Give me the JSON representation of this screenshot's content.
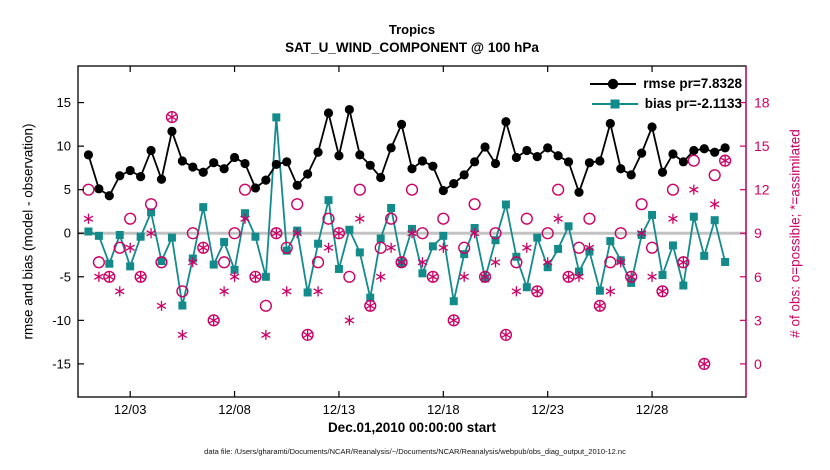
{
  "title": {
    "line1": "Tropics",
    "line2": "SAT_U_WIND_COMPONENT @ 100 hPa"
  },
  "axis_labels": {
    "left": "rmse and bias (model - observation)",
    "right": "# of obs: o=possible; *=assimilated",
    "x": "Dec.01,2010 00:00:00 start"
  },
  "legend": {
    "rmse_label": "rmse pr=7.8328",
    "bias_label": "bias pr=-2.1133"
  },
  "caption": "data file: /Users/gharamti/Documents/NCAR/Reanalysis/~/Documents/NCAR/Reanalysis/webpub/obs_diag_output_2010-12.nc",
  "colors": {
    "rmse": "#000000",
    "bias": "#148b8b",
    "obs": "#cc0066",
    "zero_line": "#c3c3c3"
  },
  "chart_data": {
    "type": "line",
    "title": "Tropics — SAT_U_WIND_COMPONENT @ 100 hPa",
    "xlabel": "Dec.01,2010 00:00:00 start",
    "ylabel_left": "rmse and bias (model - observation)",
    "ylabel_right": "# of obs: o=possible; *=assimilated",
    "xlim": [
      0.5,
      32.5
    ],
    "ylim_left": [
      -18.8,
      19.2
    ],
    "ylim_right": [
      0,
      18
    ],
    "right_axis_mapping": "count maps linearly: 0..18 onto left -15..15",
    "x_ticks": [
      3,
      8,
      13,
      18,
      23,
      28
    ],
    "x_tick_labels": [
      "12/03",
      "12/08",
      "12/13",
      "12/18",
      "12/23",
      "12/28"
    ],
    "left_ticks": [
      -15,
      -10,
      -5,
      0,
      5,
      10,
      15
    ],
    "right_ticks": [
      0,
      3,
      6,
      9,
      12,
      15,
      18
    ],
    "x_days": [
      1.0,
      1.5,
      2.0,
      2.5,
      3.0,
      3.5,
      4.0,
      4.5,
      5.0,
      5.5,
      6.0,
      6.5,
      7.0,
      7.5,
      8.0,
      8.5,
      9.0,
      9.5,
      10.0,
      10.5,
      11.0,
      11.5,
      12.0,
      12.5,
      13.0,
      13.5,
      14.0,
      14.5,
      15.0,
      15.5,
      16.0,
      16.5,
      17.0,
      17.5,
      18.0,
      18.5,
      19.0,
      19.5,
      20.0,
      20.5,
      21.0,
      21.5,
      22.0,
      22.5,
      23.0,
      23.5,
      24.0,
      24.5,
      25.0,
      25.5,
      26.0,
      26.5,
      27.0,
      27.5,
      28.0,
      28.5,
      29.0,
      29.5,
      30.0,
      30.5,
      31.0,
      31.5
    ],
    "series": [
      {
        "name": "rmse",
        "marker": "filled-circle",
        "axis": "left",
        "values": [
          9.0,
          5.1,
          4.3,
          6.6,
          7.2,
          6.5,
          9.5,
          6.2,
          11.7,
          8.3,
          7.6,
          7.0,
          8.1,
          7.4,
          8.7,
          8.0,
          5.2,
          6.1,
          7.9,
          8.2,
          5.5,
          6.8,
          9.3,
          13.8,
          8.9,
          14.2,
          9.0,
          7.8,
          6.4,
          9.8,
          12.5,
          7.4,
          8.3,
          7.7,
          4.9,
          5.7,
          6.7,
          8.2,
          9.9,
          8.0,
          12.8,
          8.7,
          9.5,
          8.8,
          9.8,
          8.9,
          8.2,
          4.7,
          8.1,
          8.3,
          12.6,
          7.4,
          6.7,
          9.2,
          12.2,
          7.0,
          9.1,
          8.2,
          9.5,
          9.7,
          9.3,
          9.8
        ]
      },
      {
        "name": "bias",
        "marker": "filled-square",
        "axis": "left",
        "values": [
          0.2,
          -0.3,
          -3.5,
          -0.2,
          -3.8,
          -0.4,
          2.4,
          -3.2,
          -0.5,
          -8.3,
          -2.9,
          3.0,
          -3.6,
          -1.0,
          -4.2,
          2.3,
          -0.4,
          -5.0,
          13.3,
          -2.0,
          0.3,
          -6.8,
          -1.2,
          3.8,
          -4.1,
          0.4,
          -2.2,
          -7.4,
          -0.6,
          2.9,
          -3.4,
          0.5,
          -4.6,
          -1.5,
          -0.3,
          -7.8,
          -2.4,
          0.6,
          -5.2,
          -0.8,
          3.3,
          -2.7,
          -6.2,
          -0.5,
          -3.9,
          -1.8,
          0.8,
          -4.4,
          -2.1,
          -6.6,
          -0.9,
          -3.1,
          -5.7,
          -0.2,
          2.1,
          -4.8,
          -1.4,
          -6.0,
          1.9,
          -2.6,
          1.5,
          -3.3
        ]
      },
      {
        "name": "N_possible",
        "marker": "open-circle",
        "axis": "right",
        "values": [
          12,
          7,
          6,
          8,
          10,
          6,
          11,
          7,
          17,
          5,
          9,
          8,
          3,
          7,
          9,
          12,
          6,
          4,
          9,
          8,
          11,
          2,
          7,
          10,
          9,
          6,
          12,
          4,
          8,
          10,
          7,
          12,
          9,
          6,
          10,
          3,
          8,
          11,
          6,
          9,
          2,
          7,
          10,
          5,
          9,
          12,
          6,
          8,
          10,
          4,
          7,
          9,
          6,
          11,
          8,
          5,
          12,
          7,
          14,
          0,
          13,
          14
        ]
      },
      {
        "name": "N_assimilated",
        "marker": "asterisk",
        "axis": "right",
        "values": [
          10,
          6,
          6,
          5,
          8,
          6,
          9,
          4,
          17,
          2,
          7,
          8,
          3,
          5,
          6,
          10,
          6,
          2,
          9,
          5,
          9,
          2,
          5,
          8,
          9,
          3,
          10,
          4,
          6,
          8,
          7,
          9,
          7,
          6,
          8,
          3,
          6,
          9,
          6,
          7,
          2,
          5,
          8,
          5,
          7,
          10,
          6,
          6,
          8,
          4,
          5,
          7,
          6,
          9,
          6,
          5,
          10,
          7,
          12,
          0,
          11,
          14
        ]
      }
    ]
  }
}
